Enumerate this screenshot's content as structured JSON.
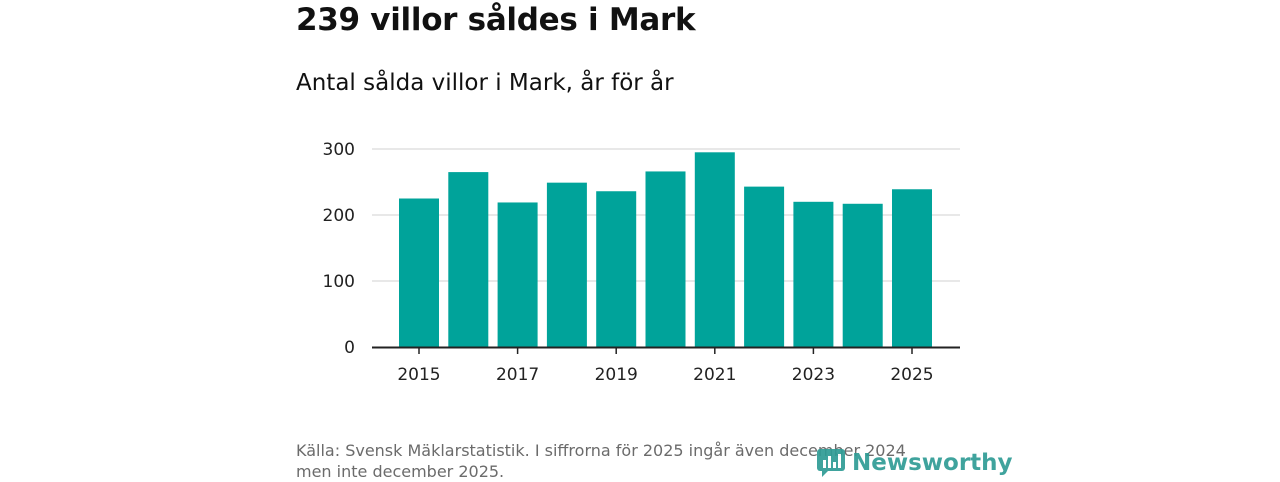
{
  "header": {
    "title": "239 villor såldes i Mark",
    "subtitle": "Antal sålda villor i Mark, år för år"
  },
  "footer": {
    "source_line1": "Källa: Svensk Mäklarstatistik. I siffrorna för 2025 ingår även december 2024",
    "source_line2": "men inte december 2025.",
    "logo_text": "Newsworthy"
  },
  "colors": {
    "bar": "#00a39a",
    "grid": "#d9d9d9",
    "axis": "#222222",
    "logo": "#2f9c95"
  },
  "chart_data": {
    "type": "bar",
    "title": "Antal sålda villor i Mark, år för år",
    "xlabel": "",
    "ylabel": "",
    "categories": [
      "2015",
      "2016",
      "2017",
      "2018",
      "2019",
      "2020",
      "2021",
      "2022",
      "2023",
      "2024",
      "2025"
    ],
    "values": [
      225,
      265,
      219,
      249,
      236,
      266,
      295,
      243,
      220,
      217,
      239
    ],
    "x_tick_labels": [
      "2015",
      "2017",
      "2019",
      "2021",
      "2023",
      "2025"
    ],
    "y_ticks": [
      0,
      100,
      200,
      300
    ],
    "ylim": [
      0,
      300
    ],
    "grid": true
  }
}
